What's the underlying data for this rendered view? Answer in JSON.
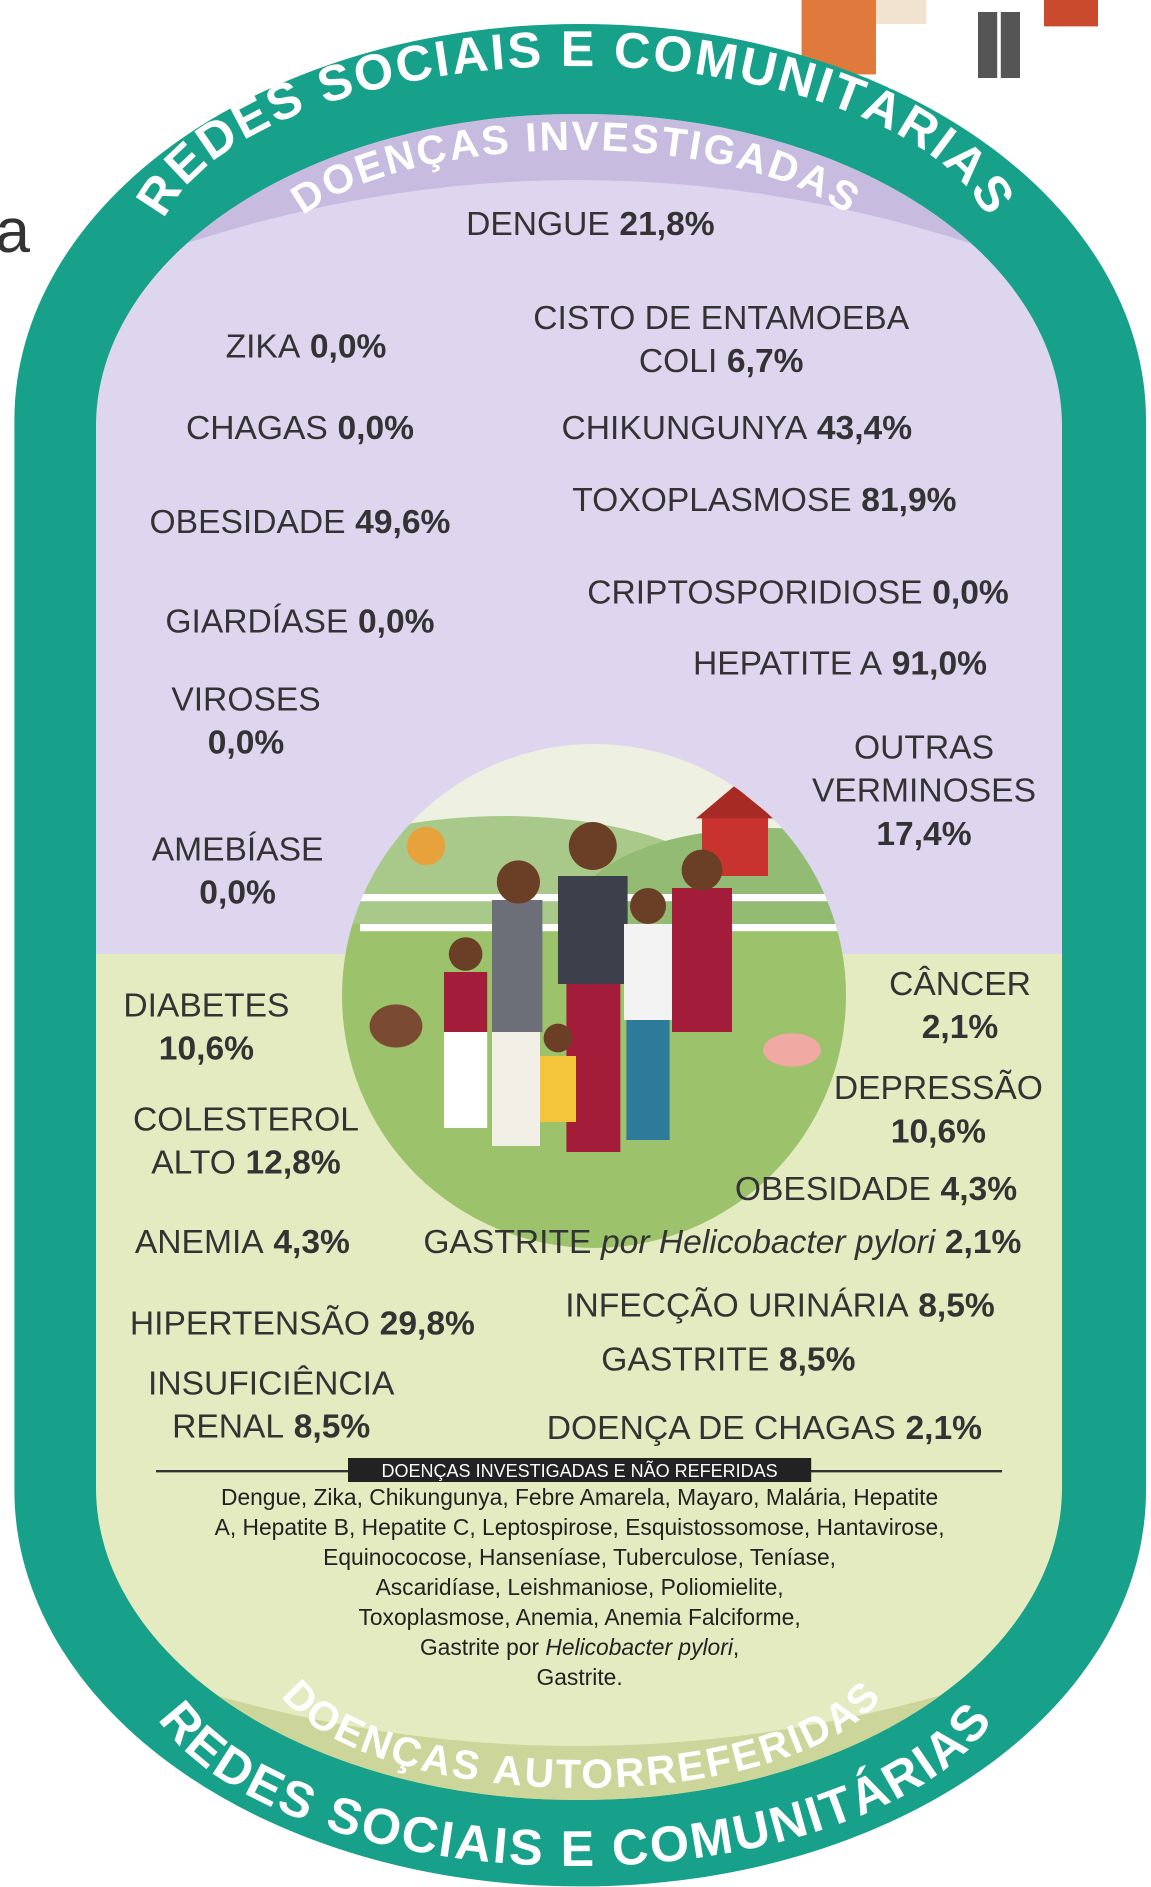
{
  "edge_fragment": "a",
  "top_outer_arc": "REDES SOCIAIS E COMUNITÁRIAS",
  "top_inner_arc": "DOENÇAS INVESTIGADAS",
  "investigated": [
    {
      "name": [
        "DENGUE"
      ],
      "value": "21,8%"
    },
    {
      "name": [
        "ZIKA"
      ],
      "value": "0,0%"
    },
    {
      "name": [
        "CISTO DE ENTAMOEBA",
        "COLI"
      ],
      "value": "6,7%"
    },
    {
      "name": [
        "CHAGAS"
      ],
      "value": "0,0%"
    },
    {
      "name": [
        "CHIKUNGUNYA"
      ],
      "value": "43,4%"
    },
    {
      "name": [
        "OBESIDADE"
      ],
      "value": "49,6%"
    },
    {
      "name": [
        "TOXOPLASMOSE"
      ],
      "value": "81,9%"
    },
    {
      "name": [
        "CRIPTOSPORIDIOSE"
      ],
      "value": "0,0%"
    },
    {
      "name": [
        "GIARDÍASE"
      ],
      "value": "0,0%"
    },
    {
      "name": [
        "HEPATITE A"
      ],
      "value": "91,0%"
    },
    {
      "name": [
        "VIROSES"
      ],
      "value": "0,0%"
    },
    {
      "name": [
        "OUTRAS",
        "VERMINOSES"
      ],
      "value": "17,4%"
    },
    {
      "name": [
        "AMEBÍASE"
      ],
      "value": "0,0%"
    }
  ],
  "self_reported": [
    {
      "name": [
        "DIABETES"
      ],
      "value": "10,6%"
    },
    {
      "name": [
        "CÂNCER"
      ],
      "value": "2,1%"
    },
    {
      "name": [
        "DEPRESSÃO"
      ],
      "value": "10,6%"
    },
    {
      "name": [
        "COLESTEROL",
        "ALTO"
      ],
      "value": "12,8%"
    },
    {
      "name": [
        "OBESIDADE"
      ],
      "value": "4,3%"
    },
    {
      "name": [
        "ANEMIA"
      ],
      "value": "4,3%"
    },
    {
      "name": [
        "GASTRITE"
      ],
      "qualifier": "por Helicobacter pylori",
      "value": "2,1%"
    },
    {
      "name": [
        "HIPERTENSÃO"
      ],
      "value": "29,8%"
    },
    {
      "name": [
        "INFECÇÃO URINÁRIA"
      ],
      "value": "8,5%"
    },
    {
      "name": [
        "GASTRITE"
      ],
      "value": "8,5%"
    },
    {
      "name": [
        "INSUFICIÊNCIA",
        "RENAL"
      ],
      "value": "8,5%"
    },
    {
      "name": [
        "DOENÇA DE CHAGAS"
      ],
      "value": "2,1%"
    }
  ],
  "note": {
    "title": "DOENÇAS INVESTIGADAS E NÃO REFERIDAS",
    "lines": [
      "Dengue, Zika, Chikungunya, Febre Amarela, Mayaro, Malária, Hepatite",
      "A, Hepatite B, Hepatite C, Leptospirose, Esquistossomose, Hantavirose,",
      "Equinococose, Hanseníase, Tuberculose, Teníase,",
      "Ascaridíase, Leishmaniose, Poliomielite,",
      "Toxoplasmose, Anemia, Anemia Falciforme,",
      [
        "Gastrite por ",
        "Helicobacter pylori",
        ","
      ],
      "Gastrite."
    ]
  },
  "bottom_inner_arc": "DOENÇAS AUTORREFERIDAS",
  "bottom_outer_arc": "REDES SOCIAIS E COMUNITÁRIAS"
}
